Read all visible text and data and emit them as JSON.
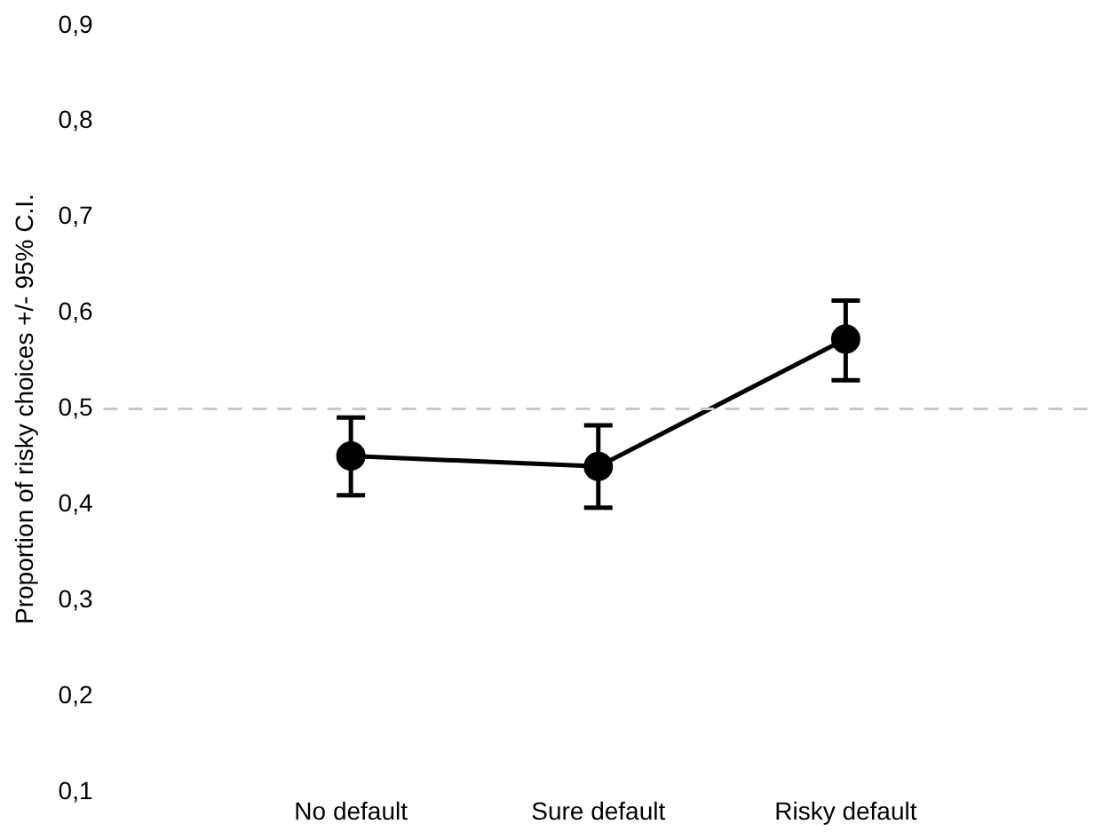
{
  "chart_data": {
    "type": "line",
    "ylabel": "Proportion of risky choices +/- 95% C.I.",
    "categories": [
      "No default",
      "Sure default",
      "Risky default"
    ],
    "series": [
      {
        "color": "#000000",
        "values": [
          0.451,
          0.44,
          0.573
        ],
        "errors": [
          [
            0.41,
            0.491
          ],
          [
            0.397,
            0.483
          ],
          [
            0.53,
            0.613
          ]
        ]
      }
    ],
    "ylim": [
      0.1,
      0.9
    ],
    "yticks": [
      {
        "value": 0.1,
        "label": "0,1"
      },
      {
        "value": 0.2,
        "label": "0,2"
      },
      {
        "value": 0.3,
        "label": "0,3"
      },
      {
        "value": 0.4,
        "label": "0,4"
      },
      {
        "value": 0.5,
        "label": "0,5"
      },
      {
        "value": 0.6,
        "label": "0,6"
      },
      {
        "value": 0.7,
        "label": "0,7"
      },
      {
        "value": 0.8,
        "label": "0,8"
      },
      {
        "value": 0.9,
        "label": "0,9"
      }
    ],
    "ref_lines": [
      {
        "axis": "y",
        "value": 0.5,
        "color": "#c8c8c8",
        "line_style": "dashed"
      }
    ],
    "grid": false,
    "legend": false,
    "marker": "circle",
    "line_style": "solid"
  }
}
